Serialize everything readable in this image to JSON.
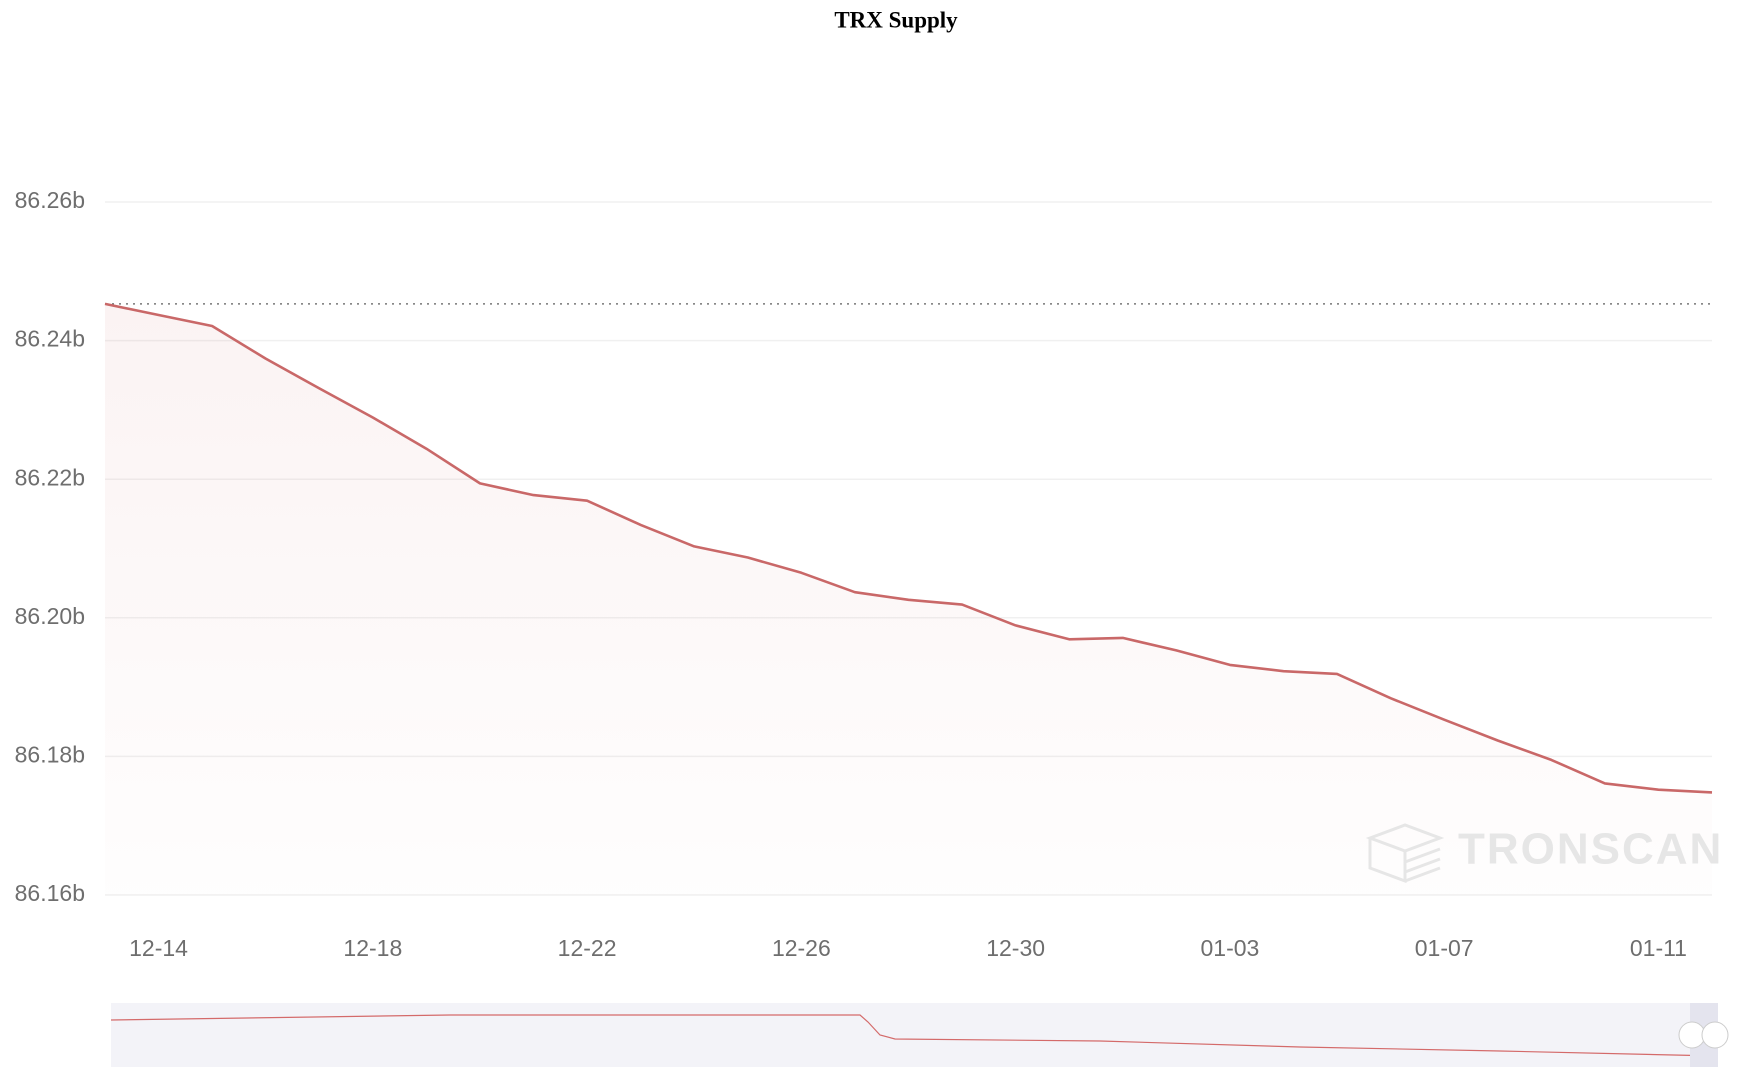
{
  "chart_data": {
    "type": "line",
    "title": "TRX Supply",
    "watermark": "TRONSCAN",
    "categories": [
      null,
      "12-14",
      null,
      null,
      null,
      "12-18",
      null,
      null,
      null,
      "12-22",
      null,
      null,
      null,
      "12-26",
      null,
      null,
      null,
      "12-30",
      null,
      null,
      null,
      "01-03",
      null,
      null,
      null,
      "01-07",
      null,
      null,
      null,
      "01-11",
      null
    ],
    "values": [
      86.2453,
      86.2437,
      86.2421,
      86.2374,
      86.2331,
      86.2289,
      86.2244,
      86.2194,
      86.2177,
      86.2169,
      86.2134,
      86.2103,
      86.2087,
      86.2065,
      86.2037,
      86.2026,
      86.2019,
      86.1989,
      86.1969,
      86.1971,
      86.1953,
      86.1932,
      86.1923,
      86.1919,
      86.1884,
      86.1853,
      86.1823,
      86.1795,
      86.1761,
      86.1752,
      86.1748
    ],
    "color": "#c96868",
    "ylim": [
      86.16,
      86.26
    ],
    "yticks": [
      {
        "value": 86.16,
        "label": "86.16b"
      },
      {
        "value": 86.18,
        "label": "86.18b"
      },
      {
        "value": 86.2,
        "label": "86.20b"
      },
      {
        "value": 86.22,
        "label": "86.22b"
      },
      {
        "value": 86.24,
        "label": "86.24b"
      },
      {
        "value": 86.26,
        "label": "86.26b"
      }
    ],
    "grid": true,
    "area": true,
    "max_line": true
  }
}
